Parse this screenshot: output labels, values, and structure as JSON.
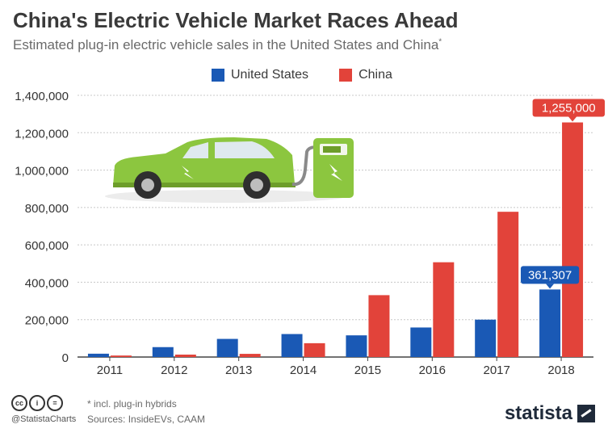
{
  "header": {
    "title": "China's Electric Vehicle Market Races Ahead",
    "subtitle": "Estimated plug-in electric vehicle sales in the United States and China",
    "subtitle_mark": "*"
  },
  "colors": {
    "us": "#1a59b5",
    "china": "#e2433a",
    "grid": "#c8c8c8",
    "axis": "#444444",
    "car": "#8cc63f"
  },
  "chart_data": {
    "type": "bar",
    "categories": [
      "2011",
      "2012",
      "2013",
      "2014",
      "2015",
      "2016",
      "2017",
      "2018"
    ],
    "series": [
      {
        "name": "United States",
        "values": [
          17800,
          53000,
          97000,
          123000,
          116000,
          158000,
          200000,
          361307
        ]
      },
      {
        "name": "China",
        "values": [
          8000,
          13000,
          17000,
          74000,
          331000,
          507000,
          777000,
          1255000
        ]
      }
    ],
    "ylim": [
      0,
      1400000
    ],
    "yticks": [
      "0",
      "200,000",
      "400,000",
      "600,000",
      "800,000",
      "1,000,000",
      "1,200,000",
      "1,400,000"
    ],
    "ytick_values": [
      0,
      200000,
      400000,
      600000,
      800000,
      1000000,
      1200000,
      1400000
    ],
    "data_labels": [
      {
        "series": "United States",
        "category": "2018",
        "text": "361,307"
      },
      {
        "series": "China",
        "category": "2018",
        "text": "1,255,000"
      }
    ],
    "grid": true,
    "legend": "top-center"
  },
  "illustration": {
    "icon": "electric-car-charging-icon"
  },
  "footer": {
    "note": "* incl. plug-in hybrids",
    "sources": "Sources: InsideEVs, CAAM",
    "handle": "@StatistaCharts",
    "brand": "statista",
    "license_icons": [
      "cc",
      "i",
      "="
    ]
  }
}
